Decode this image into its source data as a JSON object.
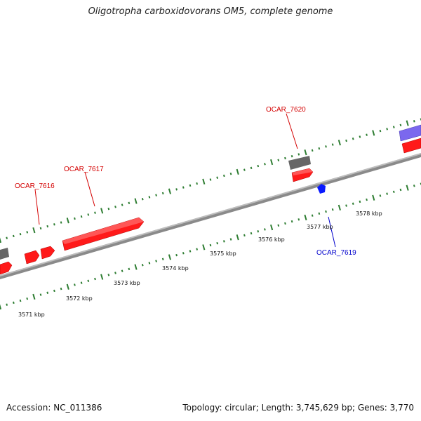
{
  "header": {
    "title": "Oligotropha carboxidovorans OM5, complete genome"
  },
  "footer": {
    "accession": "Accession: NC_011386",
    "summary": "Topology: circular; Length: 3,745,629 bp; Genes: 3,770"
  },
  "colors": {
    "forward_gene": "#ff0000",
    "reverse_gene": "#0000ff",
    "other_feature": "#666666",
    "rna_feature": "#7b68ee",
    "tick": "#2e7d32",
    "backbone": "#888888",
    "label_forward": "#d40000",
    "label_reverse": "#0000cc"
  },
  "scale_labels": [
    "3571 kbp",
    "3572 kbp",
    "3573 kbp",
    "3574 kbp",
    "3575 kbp",
    "3576 kbp",
    "3577 kbp",
    "3578 kbp"
  ],
  "gene_labels": {
    "ocar_7616": "OCAR_7616",
    "ocar_7617": "OCAR_7617",
    "ocar_7619": "OCAR_7619",
    "ocar_7620": "OCAR_7620"
  }
}
